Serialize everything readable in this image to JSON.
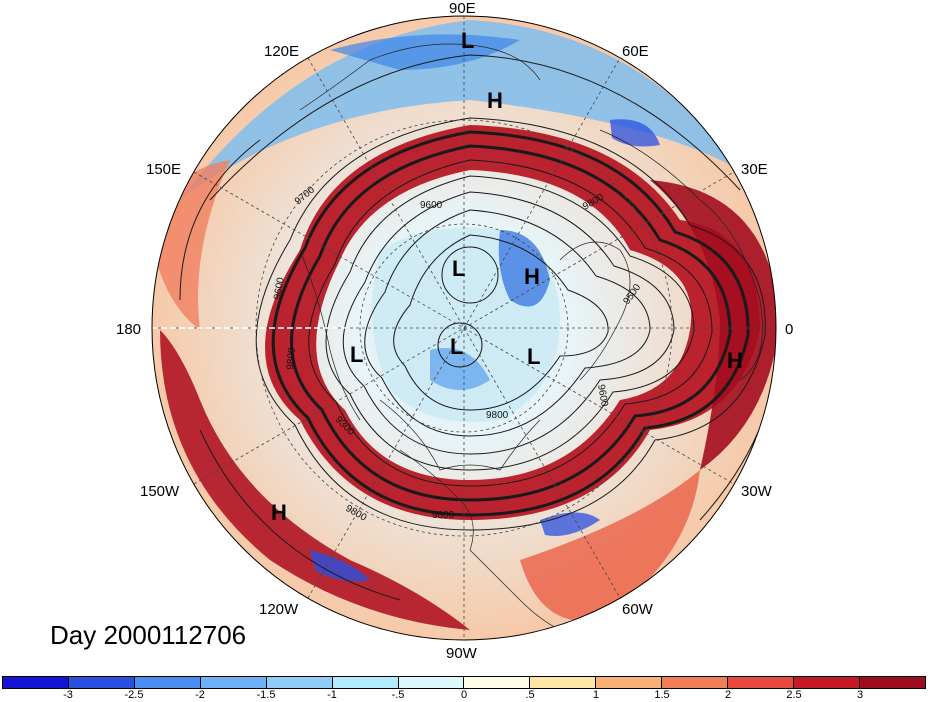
{
  "map": {
    "projection": "north polar stereographic",
    "longitude_labels": [
      {
        "text": "90E",
        "lon": 90
      },
      {
        "text": "60E",
        "lon": 60
      },
      {
        "text": "30E",
        "lon": 30
      },
      {
        "text": "0",
        "lon": 0
      },
      {
        "text": "30W",
        "lon": -30
      },
      {
        "text": "60W",
        "lon": -60
      },
      {
        "text": "90W",
        "lon": -90
      },
      {
        "text": "120W",
        "lon": -120
      },
      {
        "text": "150W",
        "lon": -150
      },
      {
        "text": "180",
        "lon": 180
      },
      {
        "text": "150E",
        "lon": 150
      },
      {
        "text": "120E",
        "lon": 120
      }
    ],
    "pressure_centers": [
      {
        "symbol": "L",
        "lon": 90,
        "lat_hint": "outer"
      },
      {
        "symbol": "H",
        "lon": 70,
        "lat_hint": "outer"
      },
      {
        "symbol": "L",
        "lon": 150,
        "lat_hint": "inner"
      },
      {
        "symbol": "H",
        "lon": 90,
        "lat_hint": "mid"
      },
      {
        "symbol": "L",
        "lon": -120,
        "lat_hint": "inner"
      },
      {
        "symbol": "L",
        "lon": -60,
        "lat_hint": "inner"
      },
      {
        "symbol": "L",
        "lon": -170,
        "lat_hint": "inner"
      },
      {
        "symbol": "H",
        "lon": -20,
        "lat_hint": "outer"
      },
      {
        "symbol": "H",
        "lon": -130,
        "lat_hint": "outer"
      }
    ],
    "contour_labels": [
      "9700",
      "9600",
      "9800",
      "9300",
      "9800",
      "9800",
      "9500",
      "9600",
      "9600",
      "9800",
      "9800"
    ],
    "colors": {
      "strong_negative": "#1f1fd6",
      "negative": "#4f9df0",
      "weak_negative": "#b3ecfb",
      "neutral": "#ffffff",
      "weak_positive": "#fde8b5",
      "positive": "#ef6b4a",
      "strong_positive": "#a50c1e"
    }
  },
  "day_label": "Day 2000112706",
  "colorbar": {
    "colors": [
      "#1414d2",
      "#2a50e0",
      "#4b8df0",
      "#6eb0f5",
      "#8fcdf8",
      "#b4ebfc",
      "#dcf8fc",
      "#fffbe4",
      "#fde6a8",
      "#f8b076",
      "#f07e57",
      "#e84a3f",
      "#c41a26",
      "#9b0d1f"
    ],
    "tick_labels": [
      "-3",
      "-2.5",
      "-2",
      "-1.5",
      "-1",
      "-.5",
      "0",
      ".5",
      "1",
      "1.5",
      "2",
      "2.5",
      "3"
    ]
  }
}
